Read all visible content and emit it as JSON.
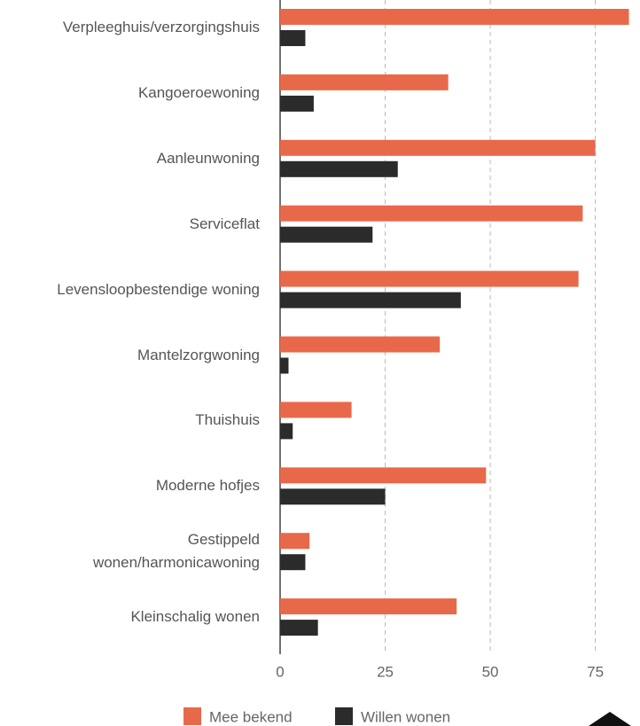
{
  "chart_data": {
    "type": "barh",
    "categories": [
      "Verpleeghuis/verzorgingshuis",
      "Kangoeroewoning",
      "Aanleunwoning",
      "Serviceflat",
      "Levensloopbestendige woning",
      "Mantelzorgwoning",
      "Thuishuis",
      "Moderne hofjes",
      "Gestippeld wonen/harmonicawoning",
      "Kleinschalig wonen"
    ],
    "series": [
      {
        "name": "Mee bekend",
        "color": "#e8694a",
        "values": [
          83,
          40,
          75,
          72,
          71,
          38,
          17,
          49,
          7,
          42
        ]
      },
      {
        "name": "Willen wonen",
        "color": "#2b2b2b",
        "values": [
          6,
          8,
          28,
          22,
          43,
          2,
          3,
          25,
          6,
          9
        ]
      }
    ],
    "xlim": [
      0,
      85
    ],
    "xticks": [
      0,
      25,
      50,
      75
    ],
    "grid": true
  }
}
